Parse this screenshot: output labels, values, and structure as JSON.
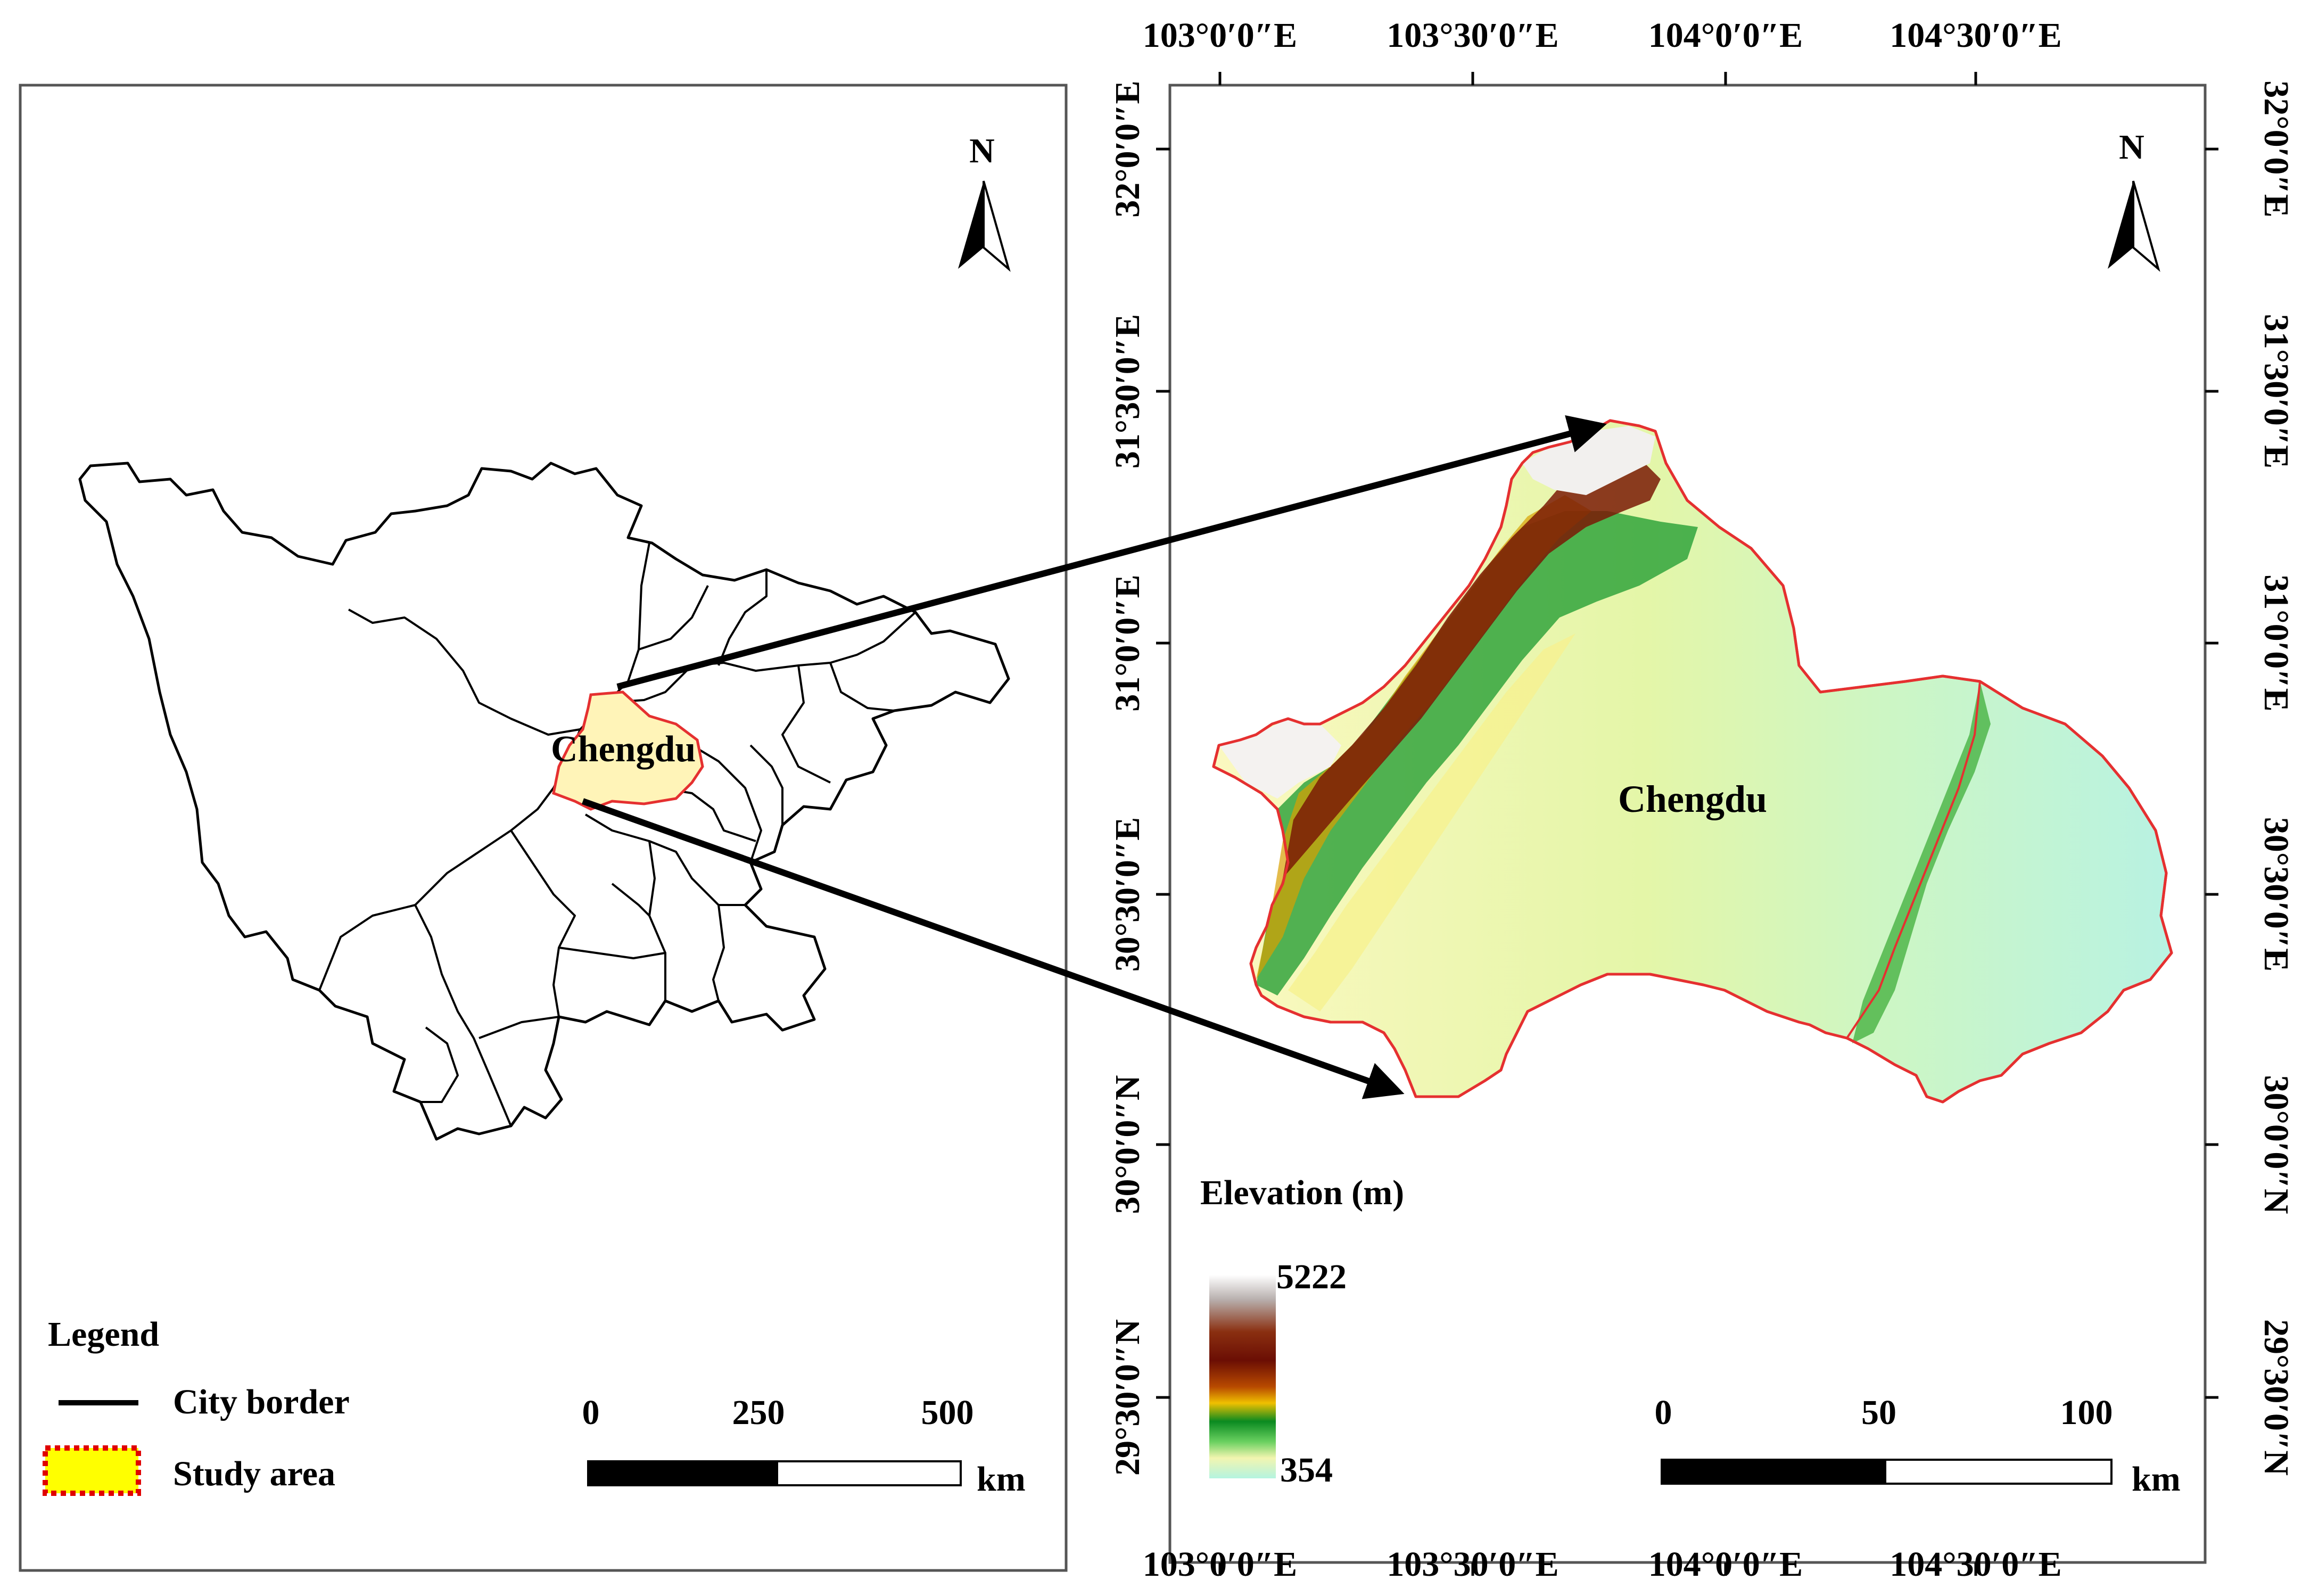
{
  "locator_map": {
    "north_label": "N",
    "region_label": "Chengdu",
    "legend": {
      "title": "Legend",
      "items": [
        {
          "label": "City border",
          "symbol": "line",
          "color": "#000000"
        },
        {
          "label": "Study area",
          "symbol": "dotted-box",
          "fill": "#ffff00",
          "border": "#e00000"
        }
      ]
    },
    "scale_bar": {
      "ticks": [
        "0",
        "250",
        "500"
      ],
      "unit": "km"
    }
  },
  "detail_map": {
    "north_label": "N",
    "region_label": "Chengdu",
    "longitude_ticks": [
      "103°0′0″E",
      "103°30′0″E",
      "104°0′0″E",
      "104°30′0″E"
    ],
    "latitude_ticks": [
      "32°0′0″E",
      "31°30′0″E",
      "31°0′0″E",
      "30°30′0″E",
      "30°0′0″N",
      "29°30′0″N"
    ],
    "elevation_legend": {
      "title": "Elevation (m)",
      "max": "5222",
      "min": "354",
      "colors": [
        "#ffffff",
        "#b8b0ae",
        "#8a2f10",
        "#6b0e04",
        "#b84a00",
        "#f0c000",
        "#0a8a20",
        "#6ad060",
        "#f2f5b0",
        "#b4f4e0"
      ]
    },
    "scale_bar": {
      "ticks": [
        "0",
        "50",
        "100"
      ],
      "unit": "km"
    }
  },
  "colors": {
    "study_border": "#e53030",
    "study_fill": "#fff5b8",
    "arrow": "#000000"
  }
}
